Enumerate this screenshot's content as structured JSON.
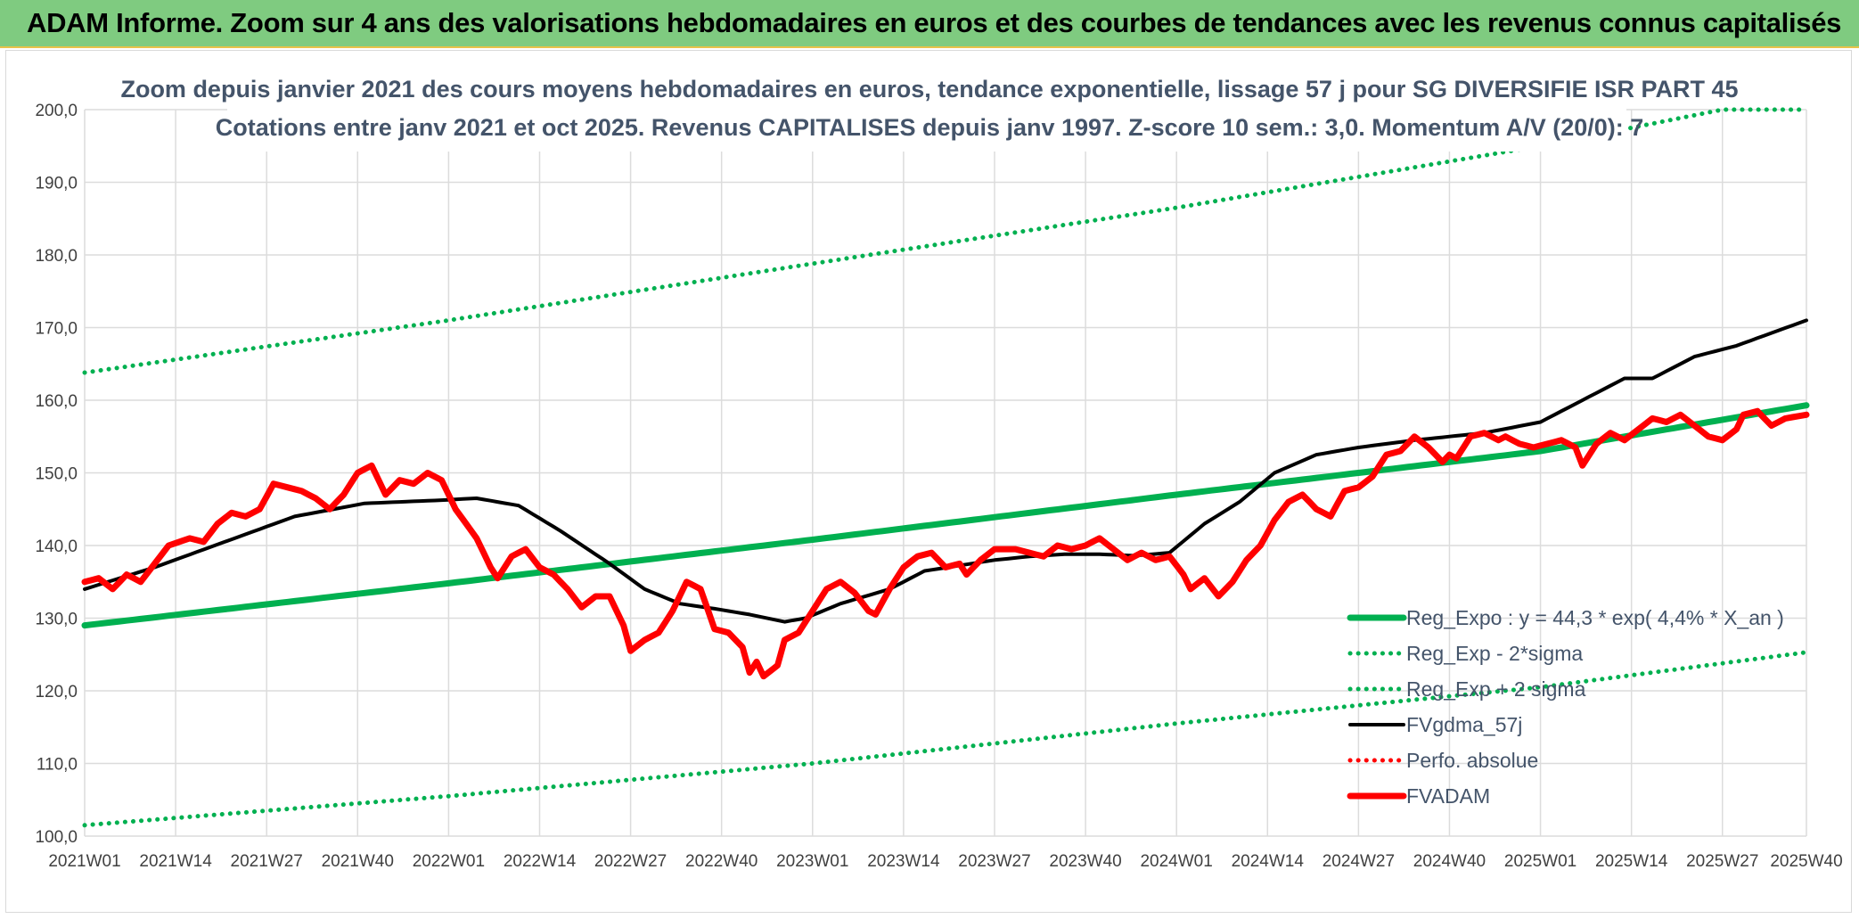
{
  "header": {
    "title": "ADAM Informe. Zoom sur 4 ans des valorisations hebdomadaires en euros et des courbes de tendances avec les revenus connus capitalisés"
  },
  "chart_data": {
    "type": "line",
    "title": "Zoom depuis janvier 2021 des cours moyens hebdomadaires en euros, tendance exponentielle, lissage 57 j pour SG DIVERSIFIE ISR PART 45",
    "subtitle": "Cotations entre janv 2021 et oct 2025. Revenus CAPITALISES depuis janv 1997. Z-score 10 sem.: 3,0. Momentum A/V (20/0): 7",
    "xlabel": "",
    "ylabel": "",
    "ylim": [
      100,
      200
    ],
    "yticks": [
      100,
      110,
      120,
      130,
      140,
      150,
      160,
      170,
      180,
      190,
      200
    ],
    "ytick_labels": [
      "100,0",
      "110,0",
      "120,0",
      "130,0",
      "140,0",
      "150,0",
      "160,0",
      "170,0",
      "180,0",
      "190,0",
      "200,0"
    ],
    "x_count": 247,
    "x_tick_index": [
      0,
      13,
      26,
      39,
      52,
      65,
      78,
      91,
      104,
      117,
      130,
      143,
      156,
      169,
      182,
      195,
      208,
      221,
      234,
      246
    ],
    "x_tick_labels": [
      "2021W01",
      "2021W14",
      "2021W27",
      "2021W40",
      "2022W01",
      "2022W14",
      "2022W27",
      "2022W40",
      "2023W01",
      "2023W14",
      "2023W27",
      "2023W40",
      "2024W01",
      "2024W14",
      "2024W27",
      "2024W40",
      "2025W01",
      "2025W14",
      "2025W27",
      "2025W40"
    ],
    "grid": true,
    "legend_position": "bottom-right",
    "series": [
      {
        "name": "Reg_Expo : y = 44,3 * exp( 4,4% *  X_an )",
        "style": "solid-thick",
        "color": "#00b050",
        "keypoints": [
          [
            0,
            129.0
          ],
          [
            52,
            134.8
          ],
          [
            104,
            140.8
          ],
          [
            156,
            147.0
          ],
          [
            208,
            153.0
          ],
          [
            246,
            159.3
          ]
        ]
      },
      {
        "name": "Reg_Exp - 2*sigma",
        "style": "dotted",
        "color": "#00b050",
        "keypoints": [
          [
            0,
            101.5
          ],
          [
            52,
            105.5
          ],
          [
            104,
            110.0
          ],
          [
            156,
            115.5
          ],
          [
            208,
            120.5
          ],
          [
            246,
            125.3
          ]
        ]
      },
      {
        "name": "Reg_Exp + 2 sigma",
        "style": "dotted",
        "color": "#00b050",
        "keypoints": [
          [
            0,
            163.8
          ],
          [
            52,
            171.0
          ],
          [
            104,
            178.8
          ],
          [
            156,
            186.5
          ],
          [
            208,
            195.0
          ],
          [
            234,
            200.0
          ],
          [
            246,
            200.0
          ]
        ]
      },
      {
        "name": "FVgdma_57j",
        "style": "solid",
        "color": "#000000",
        "keypoints": [
          [
            0,
            134.0
          ],
          [
            10,
            137.0
          ],
          [
            20,
            140.5
          ],
          [
            30,
            144.0
          ],
          [
            40,
            145.8
          ],
          [
            50,
            146.2
          ],
          [
            56,
            146.5
          ],
          [
            62,
            145.5
          ],
          [
            68,
            142.0
          ],
          [
            75,
            137.5
          ],
          [
            80,
            134.0
          ],
          [
            85,
            132.0
          ],
          [
            90,
            131.3
          ],
          [
            95,
            130.5
          ],
          [
            100,
            129.5
          ],
          [
            103,
            130.0
          ],
          [
            108,
            132.0
          ],
          [
            115,
            134.0
          ],
          [
            120,
            136.5
          ],
          [
            130,
            138.0
          ],
          [
            135,
            138.5
          ],
          [
            140,
            138.8
          ],
          [
            145,
            138.8
          ],
          [
            150,
            138.6
          ],
          [
            155,
            139.0
          ],
          [
            160,
            143.0
          ],
          [
            165,
            146.0
          ],
          [
            170,
            150.0
          ],
          [
            176,
            152.5
          ],
          [
            182,
            153.5
          ],
          [
            190,
            154.5
          ],
          [
            200,
            155.5
          ],
          [
            208,
            157.0
          ],
          [
            215,
            160.5
          ],
          [
            220,
            163.0
          ],
          [
            224,
            163.0
          ],
          [
            230,
            166.0
          ],
          [
            236,
            167.5
          ],
          [
            246,
            171.0
          ]
        ]
      },
      {
        "name": "Perfo. absolue",
        "style": "dotted",
        "color": "#ff0000",
        "keypoints": []
      },
      {
        "name": "FVADAM",
        "style": "solid-thick",
        "color": "#ff0000",
        "keypoints": [
          [
            0,
            135.0
          ],
          [
            2,
            135.5
          ],
          [
            4,
            134.0
          ],
          [
            6,
            136.0
          ],
          [
            8,
            135.0
          ],
          [
            10,
            137.5
          ],
          [
            12,
            140.0
          ],
          [
            15,
            141.0
          ],
          [
            17,
            140.5
          ],
          [
            19,
            143.0
          ],
          [
            21,
            144.5
          ],
          [
            23,
            144.0
          ],
          [
            25,
            145.0
          ],
          [
            27,
            148.5
          ],
          [
            29,
            148.0
          ],
          [
            31,
            147.5
          ],
          [
            33,
            146.5
          ],
          [
            35,
            145.0
          ],
          [
            37,
            147.0
          ],
          [
            39,
            150.0
          ],
          [
            41,
            151.0
          ],
          [
            43,
            147.0
          ],
          [
            45,
            149.0
          ],
          [
            47,
            148.5
          ],
          [
            49,
            150.0
          ],
          [
            51,
            149.0
          ],
          [
            53,
            145.0
          ],
          [
            56,
            141.0
          ],
          [
            58,
            137.0
          ],
          [
            59,
            135.5
          ],
          [
            61,
            138.5
          ],
          [
            63,
            139.5
          ],
          [
            65,
            137.0
          ],
          [
            67,
            136.0
          ],
          [
            69,
            134.0
          ],
          [
            71,
            131.5
          ],
          [
            73,
            133.0
          ],
          [
            75,
            133.0
          ],
          [
            77,
            129.0
          ],
          [
            78,
            125.5
          ],
          [
            80,
            127.0
          ],
          [
            82,
            128.0
          ],
          [
            84,
            131.0
          ],
          [
            86,
            135.0
          ],
          [
            88,
            134.0
          ],
          [
            90,
            128.5
          ],
          [
            92,
            128.0
          ],
          [
            94,
            126.0
          ],
          [
            95,
            122.5
          ],
          [
            96,
            124.0
          ],
          [
            97,
            122.0
          ],
          [
            99,
            123.5
          ],
          [
            100,
            127.0
          ],
          [
            102,
            128.0
          ],
          [
            104,
            131.0
          ],
          [
            106,
            134.0
          ],
          [
            108,
            135.0
          ],
          [
            110,
            133.5
          ],
          [
            112,
            131.0
          ],
          [
            113,
            130.5
          ],
          [
            115,
            134.0
          ],
          [
            117,
            137.0
          ],
          [
            119,
            138.5
          ],
          [
            121,
            139.0
          ],
          [
            123,
            137.0
          ],
          [
            125,
            137.5
          ],
          [
            126,
            136.0
          ],
          [
            128,
            138.0
          ],
          [
            130,
            139.5
          ],
          [
            133,
            139.5
          ],
          [
            135,
            139.0
          ],
          [
            137,
            138.5
          ],
          [
            139,
            140.0
          ],
          [
            141,
            139.5
          ],
          [
            143,
            140.0
          ],
          [
            145,
            141.0
          ],
          [
            147,
            139.5
          ],
          [
            149,
            138.0
          ],
          [
            151,
            139.0
          ],
          [
            153,
            138.0
          ],
          [
            155,
            138.5
          ],
          [
            157,
            136.0
          ],
          [
            158,
            134.0
          ],
          [
            160,
            135.5
          ],
          [
            162,
            133.0
          ],
          [
            164,
            135.0
          ],
          [
            166,
            138.0
          ],
          [
            168,
            140.0
          ],
          [
            170,
            143.5
          ],
          [
            172,
            146.0
          ],
          [
            174,
            147.0
          ],
          [
            176,
            145.0
          ],
          [
            178,
            144.0
          ],
          [
            180,
            147.5
          ],
          [
            182,
            148.0
          ],
          [
            184,
            149.5
          ],
          [
            186,
            152.5
          ],
          [
            188,
            153.0
          ],
          [
            190,
            155.0
          ],
          [
            192,
            153.5
          ],
          [
            194,
            151.5
          ],
          [
            195,
            152.5
          ],
          [
            196,
            152.0
          ],
          [
            198,
            155.0
          ],
          [
            200,
            155.5
          ],
          [
            202,
            154.5
          ],
          [
            203,
            155.0
          ],
          [
            205,
            154.0
          ],
          [
            207,
            153.5
          ],
          [
            209,
            154.0
          ],
          [
            211,
            154.5
          ],
          [
            213,
            153.5
          ],
          [
            214,
            151.0
          ],
          [
            216,
            154.0
          ],
          [
            218,
            155.5
          ],
          [
            220,
            154.5
          ],
          [
            222,
            156.0
          ],
          [
            224,
            157.5
          ],
          [
            226,
            157.0
          ],
          [
            228,
            158.0
          ],
          [
            230,
            156.5
          ],
          [
            232,
            155.0
          ],
          [
            234,
            154.5
          ],
          [
            236,
            156.0
          ],
          [
            237,
            158.0
          ],
          [
            239,
            158.5
          ],
          [
            241,
            156.5
          ],
          [
            243,
            157.5
          ],
          [
            246,
            158.0
          ]
        ]
      }
    ]
  }
}
